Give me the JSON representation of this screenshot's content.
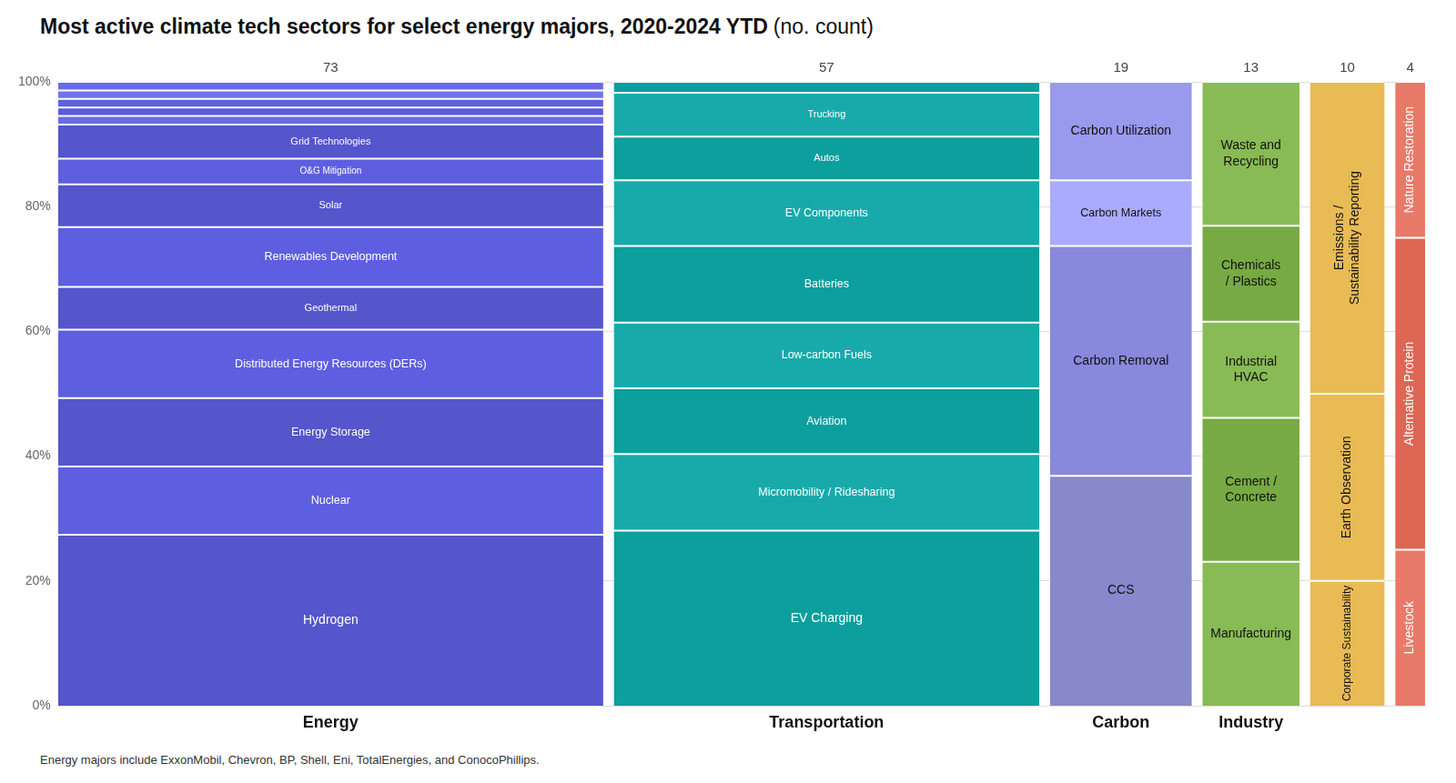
{
  "chart_data": {
    "type": "mekko",
    "title": "Most active climate tech sectors for select energy majors, 2020-2024 YTD",
    "subtitle": "(no. count)",
    "footnote": "Energy majors include ExxonMobil, Chevron, BP, Shell, Eni, TotalEnergies, and ConocoPhillips.",
    "categories": [
      "Energy",
      "Transportation",
      "Carbon",
      "Industry",
      null,
      null
    ],
    "counts": [
      73,
      57,
      19,
      13,
      10,
      4
    ],
    "segments": [
      [
        {
          "label": null,
          "value": 1.369863,
          "color": "#6a6aea"
        },
        {
          "label": null,
          "value": 1.369863,
          "color": "#7272ea"
        },
        {
          "label": null,
          "value": 1.369863,
          "color": "#6060e0"
        },
        {
          "label": null,
          "value": 1.369863,
          "color": "#5a5ae0"
        },
        {
          "label": null,
          "value": 1.369863,
          "color": "#6a6aea"
        },
        {
          "label": "Grid Technologies",
          "value": 5.479452,
          "color": "#5555cc"
        },
        {
          "label": "O&G Mitigation",
          "value": 4.109589,
          "color": "#5e5ee0"
        },
        {
          "label": "Solar",
          "value": 6.849315,
          "color": "#5555cc"
        },
        {
          "label": "Renewables Development",
          "value": 9.589041,
          "color": "#5e5ee0"
        },
        {
          "label": "Geothermal",
          "value": 6.849315,
          "color": "#5555cc"
        },
        {
          "label": "Distributed Energy Resources (DERs)",
          "value": 10.958904,
          "color": "#5e5ee0"
        },
        {
          "label": "Energy Storage",
          "value": 10.958904,
          "color": "#5555cc"
        },
        {
          "label": "Nuclear",
          "value": 10.958904,
          "color": "#5e5ee0"
        },
        {
          "label": "Hydrogen",
          "value": 27.39726,
          "color": "#5555cc"
        }
      ],
      [
        {
          "label": null,
          "value": 1.754386,
          "color": "#0d9e9e"
        },
        {
          "label": "Trucking",
          "value": 7.017544,
          "color": "#18aaaa"
        },
        {
          "label": "Autos",
          "value": 7.017544,
          "color": "#0d9e9e"
        },
        {
          "label": "EV Components",
          "value": 10.526316,
          "color": "#18aaaa"
        },
        {
          "label": "Batteries",
          "value": 12.280702,
          "color": "#0d9e9e"
        },
        {
          "label": "Low-carbon Fuels",
          "value": 10.526316,
          "color": "#18aaaa"
        },
        {
          "label": "Aviation",
          "value": 10.526316,
          "color": "#0d9e9e"
        },
        {
          "label": "Micromobility / Ridesharing",
          "value": 12.280702,
          "color": "#18aaaa"
        },
        {
          "label": "EV Charging",
          "value": 28.070175,
          "color": "#0d9e9e"
        }
      ],
      [
        {
          "label": "Carbon Utilization",
          "value": 15.789474,
          "color": "#9999ee"
        },
        {
          "label": "Carbon Markets",
          "value": 10.526316,
          "color": "#aaaaff"
        },
        {
          "label": "Carbon Removal",
          "value": 36.842105,
          "color": "#8888dd"
        },
        {
          "label": "CCS",
          "value": 36.842105,
          "color": "#8888cc"
        }
      ],
      [
        {
          "label": "Waste and\nRecycling",
          "value": 23.076923,
          "color": "#88bb55"
        },
        {
          "label": "Chemicals\n/ Plastics",
          "value": 15.384615,
          "color": "#77aa44"
        },
        {
          "label": "Industrial\nHVAC",
          "value": 15.384615,
          "color": "#88bb55"
        },
        {
          "label": "Cement /\nConcrete",
          "value": 23.076923,
          "color": "#77aa44"
        },
        {
          "label": "Manufacturing",
          "value": 23.076923,
          "color": "#88bb55"
        }
      ],
      [
        {
          "label": "Emissions /\nSustainability Reporting",
          "value": 50,
          "color": "#e8bb55"
        },
        {
          "label": "Earth Observation",
          "value": 30,
          "color": "#e8bb55"
        },
        {
          "label": "Corporate Sustainability",
          "value": 20,
          "color": "#e8bb55"
        }
      ],
      [
        {
          "label": "Nature Restoration",
          "value": 25,
          "color": "#e87a6a"
        },
        {
          "label": "Alternative Protein",
          "value": 50,
          "color": "#dd6655"
        },
        {
          "label": "Livestock",
          "value": 25,
          "color": "#e87a6a"
        }
      ]
    ],
    "ylim": [
      0,
      100
    ],
    "yticks": [
      {
        "value": 0,
        "label": "0%"
      },
      {
        "value": 20,
        "label": "20%"
      },
      {
        "value": 40,
        "label": "40%"
      },
      {
        "value": 60,
        "label": "60%"
      },
      {
        "value": 80,
        "label": "80%"
      },
      {
        "value": 100,
        "label": "100%"
      }
    ],
    "grid": true,
    "stacked": true,
    "tick_labels": "y"
  }
}
